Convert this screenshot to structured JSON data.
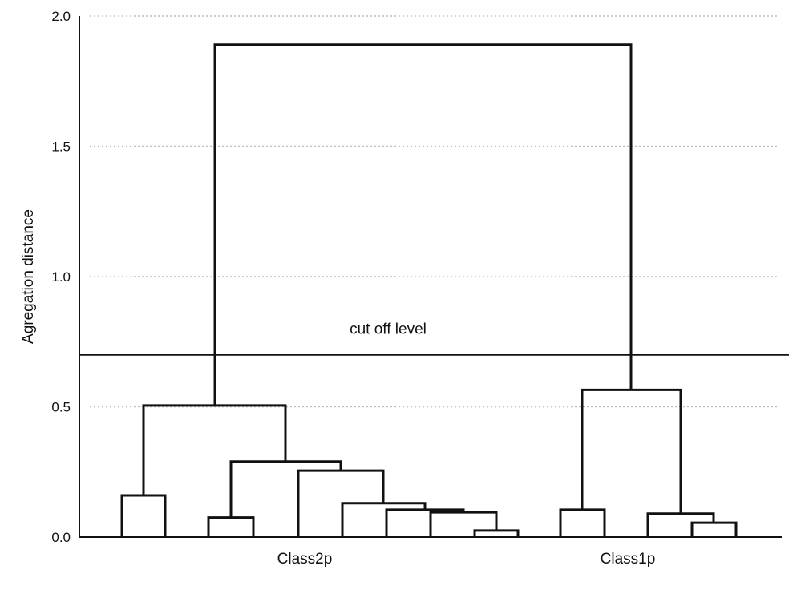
{
  "chart_data": {
    "type": "dendrogram",
    "ylabel": "Agregation distance",
    "ylim": [
      0,
      2.0
    ],
    "yticks": [
      "0.0",
      "0.5",
      "1.0",
      "1.5",
      "2.0"
    ],
    "grid": true,
    "cutoff": {
      "label": "cut off level",
      "value": 0.7
    },
    "cluster_labels": [
      {
        "text": "Class2p",
        "x": 380
      },
      {
        "text": "Class1p",
        "x": 783
      }
    ],
    "merges": [
      {
        "h": 0.16,
        "left": 152,
        "right": 206
      },
      {
        "h": 0.075,
        "left": 260,
        "right": 316
      },
      {
        "h": 0.025,
        "left": 592,
        "right": 646
      },
      {
        "h": 0.095,
        "left": 537,
        "right": 619
      },
      {
        "h": 0.105,
        "left": 482,
        "right": 578
      },
      {
        "h": 0.13,
        "left": 427,
        "right": 530
      },
      {
        "h": 0.255,
        "left": 372,
        "right": 478
      },
      {
        "h": 0.29,
        "left": 288,
        "right": 425
      },
      {
        "h": 0.505,
        "left": 179,
        "right": 356
      },
      {
        "h": 0.105,
        "left": 699,
        "right": 754
      },
      {
        "h": 0.055,
        "left": 863,
        "right": 918
      },
      {
        "h": 0.09,
        "left": 808,
        "right": 890
      },
      {
        "h": 0.565,
        "left": 726,
        "right": 849
      },
      {
        "h": 1.89,
        "left": 268,
        "right": 787
      }
    ]
  }
}
